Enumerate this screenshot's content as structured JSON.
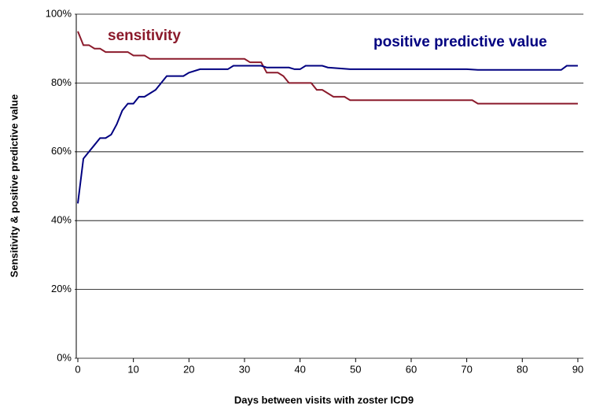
{
  "chart_data": {
    "type": "line",
    "xlabel": "Days between visits with zoster ICD9",
    "ylabel": "Sensitivity & positive predictive value",
    "xlim": [
      0,
      91
    ],
    "xticks": [
      0,
      10,
      20,
      30,
      40,
      50,
      60,
      70,
      80,
      90
    ],
    "ylim": [
      0,
      100
    ],
    "yticks": [
      {
        "value": 0,
        "label": "0%"
      },
      {
        "value": 20,
        "label": "20%"
      },
      {
        "value": 40,
        "label": "40%"
      },
      {
        "value": 60,
        "label": "60%"
      },
      {
        "value": 80,
        "label": "80%"
      },
      {
        "value": 100,
        "label": "100%"
      }
    ],
    "grid": true,
    "series": [
      {
        "name": "sensitivity",
        "color": "#8b1a2b",
        "x": [
          0,
          1,
          2,
          3,
          4,
          5,
          9,
          10,
          12,
          13,
          30,
          31,
          33,
          34,
          36,
          37,
          38,
          42,
          43,
          44,
          46,
          48,
          49,
          71,
          72,
          90
        ],
        "values": [
          95,
          91,
          91,
          90,
          90,
          89,
          89,
          88,
          88,
          87,
          87,
          86,
          86,
          83,
          83,
          82,
          80,
          80,
          78,
          78,
          76,
          76,
          75,
          75,
          74,
          74
        ]
      },
      {
        "name": "positive predictive value",
        "color": "#000080",
        "x": [
          0,
          1,
          2,
          3,
          4,
          5,
          6,
          7,
          8,
          9,
          10,
          11,
          12,
          13,
          14,
          15,
          16,
          19,
          20,
          22,
          27,
          28,
          33,
          34,
          38,
          39,
          40,
          41,
          44,
          45,
          49,
          70,
          72,
          87,
          88,
          90
        ],
        "values": [
          45,
          58,
          60,
          62,
          64,
          64,
          65,
          68,
          72,
          74,
          74,
          76,
          76,
          77,
          78,
          80,
          82,
          82,
          83,
          84,
          84,
          85,
          85,
          84.5,
          84.5,
          84,
          84,
          85,
          85,
          84.5,
          84,
          84,
          83.8,
          83.8,
          85,
          85
        ]
      }
    ]
  }
}
